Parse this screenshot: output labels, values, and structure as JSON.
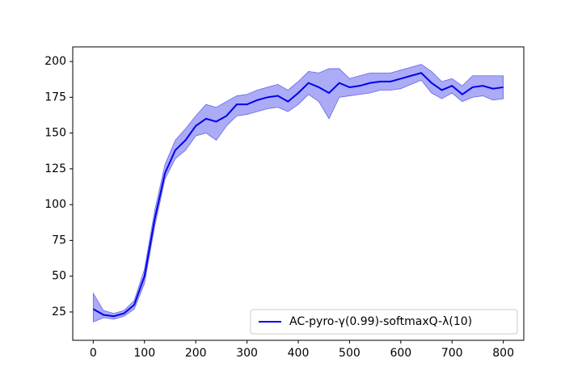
{
  "chart_data": {
    "type": "line",
    "x": [
      0,
      20,
      40,
      60,
      80,
      100,
      120,
      140,
      160,
      180,
      200,
      220,
      240,
      260,
      280,
      300,
      320,
      340,
      360,
      380,
      400,
      420,
      440,
      460,
      480,
      500,
      520,
      540,
      560,
      580,
      600,
      620,
      640,
      660,
      680,
      700,
      720,
      740,
      760,
      780,
      800
    ],
    "series": [
      {
        "name": "AC-pyro-γ(0.99)-softmaxQ-λ(10)",
        "color": "#0000ee",
        "band_color": "#6666ee",
        "values": [
          27,
          23,
          22,
          24,
          30,
          50,
          90,
          122,
          138,
          145,
          155,
          160,
          158,
          162,
          170,
          170,
          173,
          175,
          176,
          172,
          178,
          185,
          182,
          178,
          185,
          182,
          183,
          185,
          186,
          186,
          188,
          190,
          192,
          185,
          180,
          183,
          177,
          182,
          183,
          181,
          182
        ],
        "lower": [
          18,
          21,
          20,
          22,
          27,
          45,
          85,
          118,
          132,
          138,
          148,
          150,
          145,
          155,
          162,
          163,
          165,
          167,
          168,
          165,
          170,
          177,
          172,
          160,
          175,
          176,
          177,
          178,
          180,
          180,
          181,
          184,
          187,
          178,
          174,
          178,
          172,
          175,
          176,
          173,
          174
        ],
        "upper": [
          38,
          26,
          24,
          26,
          33,
          55,
          96,
          128,
          145,
          153,
          162,
          170,
          168,
          172,
          176,
          177,
          180,
          182,
          184,
          180,
          186,
          193,
          192,
          195,
          195,
          188,
          190,
          192,
          192,
          192,
          194,
          196,
          198,
          193,
          186,
          188,
          183,
          190,
          190,
          190,
          190
        ]
      }
    ],
    "xlim": [
      -40,
      840
    ],
    "xticks": [
      0,
      100,
      200,
      300,
      400,
      500,
      600,
      700,
      800
    ],
    "ylim": [
      5.2,
      210.2
    ],
    "yticks": [
      25,
      50,
      75,
      100,
      125,
      150,
      175,
      200
    ],
    "legend": "lower right"
  }
}
